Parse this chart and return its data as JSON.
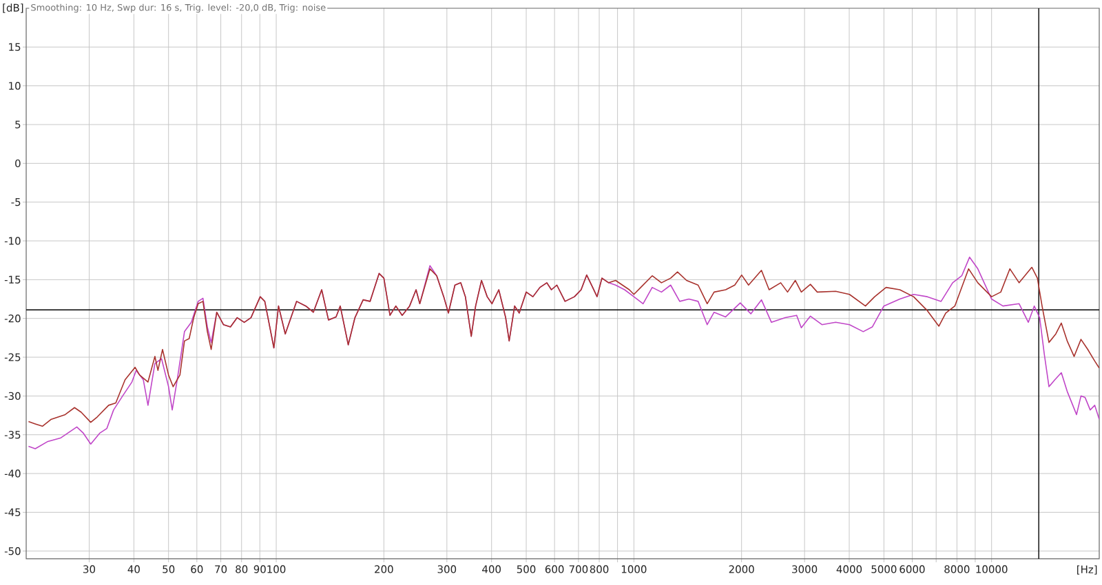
{
  "chart_data": {
    "type": "line",
    "title": "Smoothing: 10 Hz, Swp dur: 16 s, Trig. level: -20,0 dB, Trig: noise",
    "xlabel": "[Hz]",
    "ylabel": "[dB]",
    "log": "x",
    "grid": true,
    "xlim": [
      20,
      20000
    ],
    "ylim": [
      -51,
      20
    ],
    "xticks": [
      30,
      40,
      50,
      60,
      70,
      80,
      90,
      100,
      200,
      300,
      400,
      500,
      600,
      700,
      800,
      {
        "value": 900,
        "label": null
      },
      1000,
      2000,
      3000,
      4000,
      5000,
      6000,
      {
        "value": 7000,
        "label": null
      },
      8000,
      {
        "value": 9000,
        "label": null
      },
      10000
    ],
    "yticks": [
      -50,
      -45,
      -40,
      -35,
      -30,
      -25,
      -20,
      -15,
      -10,
      -5,
      0,
      5,
      10,
      15
    ],
    "ref_lines": [
      {
        "axis": "y",
        "value": -18.9,
        "color": "#000000"
      },
      {
        "axis": "x",
        "value": 13550,
        "color": "#000000"
      }
    ],
    "series": [
      {
        "color": "#c046c8",
        "x": [
          20.3,
          21.2,
          22.9,
          25.0,
          27.7,
          28.9,
          30.3,
          32.1,
          33.6,
          35.1,
          37.2,
          39.5,
          40.6,
          42.5,
          43.8,
          45.8,
          47.8,
          50.0,
          51.2,
          53.0,
          55.4,
          57.9,
          60.5,
          62.4,
          64.2,
          65.8,
          68.2,
          71.2,
          74.5,
          77.8,
          81.4,
          85.0,
          90.2,
          92.9,
          98.5,
          101.5,
          106,
          114,
          121,
          127,
          134,
          140,
          147,
          151,
          159,
          166,
          175,
          183,
          194,
          200,
          208,
          216,
          225,
          236,
          246,
          252,
          269,
          281,
          294,
          303,
          316,
          328,
          338,
          351,
          361,
          375,
          389,
          401,
          419,
          438,
          448,
          464,
          478,
          500,
          522,
          546,
          571,
          588,
          609,
          642,
          682,
          712,
          738,
          767,
          789,
          814,
          850,
          889,
          942,
          1000,
          1061,
          1125,
          1194,
          1267,
          1343,
          1425,
          1512,
          1603,
          1676,
          1805,
          1983,
          2123,
          2273,
          2424,
          2649,
          2851,
          2938,
          3115,
          3356,
          3666,
          4006,
          4377,
          4640,
          4998,
          5540,
          6053,
          6614,
          7225,
          7784,
          8253,
          8680,
          9152,
          10000,
          10760,
          11940,
          12670,
          13160,
          13630,
          14040,
          14470,
          15030,
          15670,
          16270,
          17280,
          17780,
          18260,
          18870,
          19430,
          20000
        ],
        "values": [
          -36.5,
          -36.8,
          -35.9,
          -35.4,
          -34.0,
          -34.8,
          -36.2,
          -34.8,
          -34.2,
          -31.8,
          -30.0,
          -28.2,
          -26.7,
          -27.9,
          -31.2,
          -25.8,
          -25.2,
          -28.8,
          -31.8,
          -27.6,
          -21.7,
          -20.5,
          -17.8,
          -17.4,
          -21.1,
          -23.1,
          -19.2,
          -20.8,
          -21.1,
          -19.9,
          -20.5,
          -19.9,
          -17.2,
          -17.8,
          -23.8,
          -18.4,
          -22.0,
          -17.8,
          -18.4,
          -19.2,
          -16.3,
          -20.2,
          -19.8,
          -18.4,
          -23.4,
          -19.9,
          -17.6,
          -17.8,
          -14.2,
          -14.8,
          -19.6,
          -18.4,
          -19.6,
          -18.4,
          -16.3,
          -18.1,
          -13.2,
          -14.5,
          -17.2,
          -19.3,
          -15.7,
          -15.4,
          -17.2,
          -22.3,
          -18.4,
          -15.1,
          -17.2,
          -18.1,
          -16.3,
          -19.9,
          -22.9,
          -18.4,
          -19.3,
          -16.6,
          -17.2,
          -16.0,
          -15.4,
          -16.3,
          -15.7,
          -17.8,
          -17.2,
          -16.3,
          -14.4,
          -16.0,
          -17.2,
          -14.8,
          -15.4,
          -15.7,
          -16.3,
          -17.2,
          -18.1,
          -16.0,
          -16.6,
          -15.7,
          -17.8,
          -17.5,
          -17.8,
          -20.8,
          -19.2,
          -19.8,
          -18.0,
          -19.4,
          -17.6,
          -20.5,
          -19.9,
          -19.6,
          -21.2,
          -19.7,
          -20.8,
          -20.5,
          -20.8,
          -21.7,
          -21.1,
          -18.4,
          -17.5,
          -16.9,
          -17.2,
          -17.8,
          -15.4,
          -14.5,
          -12.1,
          -13.6,
          -17.5,
          -18.4,
          -18.1,
          -20.5,
          -18.4,
          -19.9,
          -24.6,
          -28.8,
          -27.9,
          -27.0,
          -29.4,
          -32.4,
          -30.0,
          -30.2,
          -31.8,
          -31.2,
          -33.0
        ]
      },
      {
        "color": "#a8322d",
        "x": [
          20.3,
          21.2,
          22.2,
          23.5,
          25.7,
          27.3,
          28.5,
          30.3,
          31.6,
          34.0,
          35.6,
          37.8,
          40.3,
          41.5,
          43.8,
          45.8,
          46.7,
          48.1,
          50.0,
          51.5,
          53.8,
          55.4,
          57.1,
          58.8,
          60.5,
          62.4,
          64.2,
          65.8,
          68.2,
          71.2,
          74.5,
          77.8,
          81.4,
          85.0,
          90.2,
          92.9,
          98.5,
          101.5,
          106,
          114,
          121,
          127,
          134,
          140,
          147,
          151,
          159,
          166,
          175,
          183,
          194,
          200,
          208,
          216,
          225,
          236,
          246,
          252,
          269,
          281,
          294,
          303,
          316,
          328,
          338,
          351,
          361,
          375,
          389,
          401,
          419,
          438,
          448,
          464,
          478,
          500,
          522,
          546,
          571,
          588,
          609,
          642,
          682,
          712,
          738,
          767,
          789,
          814,
          850,
          889,
          929,
          971,
          1000,
          1045,
          1125,
          1194,
          1267,
          1324,
          1404,
          1512,
          1603,
          1676,
          1805,
          1914,
          2001,
          2092,
          2273,
          2388,
          2573,
          2689,
          2826,
          2938,
          3115,
          3256,
          3666,
          4006,
          4439,
          4711,
          5070,
          5540,
          6053,
          6614,
          7124,
          7446,
          7894,
          8626,
          9152,
          10000,
          10610,
          11250,
          11940,
          12960,
          13430,
          13840,
          14470,
          15120,
          15670,
          16270,
          17010,
          17780,
          18580,
          19430,
          20000
        ],
        "values": [
          -33.3,
          -33.6,
          -33.9,
          -33.0,
          -32.4,
          -31.5,
          -32.1,
          -33.4,
          -32.7,
          -31.2,
          -30.9,
          -27.9,
          -26.3,
          -27.3,
          -28.2,
          -24.9,
          -26.7,
          -24.0,
          -27.3,
          -28.8,
          -27.3,
          -22.9,
          -22.6,
          -19.9,
          -18.1,
          -17.8,
          -21.7,
          -24.0,
          -19.2,
          -20.8,
          -21.1,
          -19.9,
          -20.5,
          -19.9,
          -17.2,
          -17.8,
          -23.8,
          -18.4,
          -22.0,
          -17.8,
          -18.4,
          -19.2,
          -16.3,
          -20.2,
          -19.8,
          -18.4,
          -23.4,
          -19.9,
          -17.6,
          -17.8,
          -14.2,
          -14.8,
          -19.6,
          -18.4,
          -19.6,
          -18.4,
          -16.3,
          -18.1,
          -13.6,
          -14.5,
          -17.2,
          -19.3,
          -15.7,
          -15.4,
          -17.2,
          -22.3,
          -18.4,
          -15.1,
          -17.2,
          -18.1,
          -16.3,
          -19.9,
          -22.9,
          -18.4,
          -19.3,
          -16.6,
          -17.2,
          -16.0,
          -15.4,
          -16.3,
          -15.7,
          -17.8,
          -17.2,
          -16.3,
          -14.4,
          -16.0,
          -17.2,
          -14.8,
          -15.4,
          -15.1,
          -15.7,
          -16.3,
          -16.9,
          -16.0,
          -14.5,
          -15.4,
          -14.8,
          -14.0,
          -15.1,
          -15.7,
          -18.1,
          -16.6,
          -16.3,
          -15.7,
          -14.4,
          -15.7,
          -13.8,
          -16.3,
          -15.4,
          -16.6,
          -15.1,
          -16.6,
          -15.6,
          -16.6,
          -16.5,
          -16.9,
          -18.4,
          -17.2,
          -16.0,
          -16.3,
          -17.2,
          -19.0,
          -21.0,
          -19.3,
          -18.4,
          -13.6,
          -15.4,
          -17.2,
          -16.6,
          -13.6,
          -15.4,
          -13.4,
          -14.8,
          -18.4,
          -23.1,
          -22.0,
          -20.6,
          -22.9,
          -24.9,
          -22.7,
          -24.0,
          -25.5,
          -26.4
        ]
      }
    ]
  }
}
